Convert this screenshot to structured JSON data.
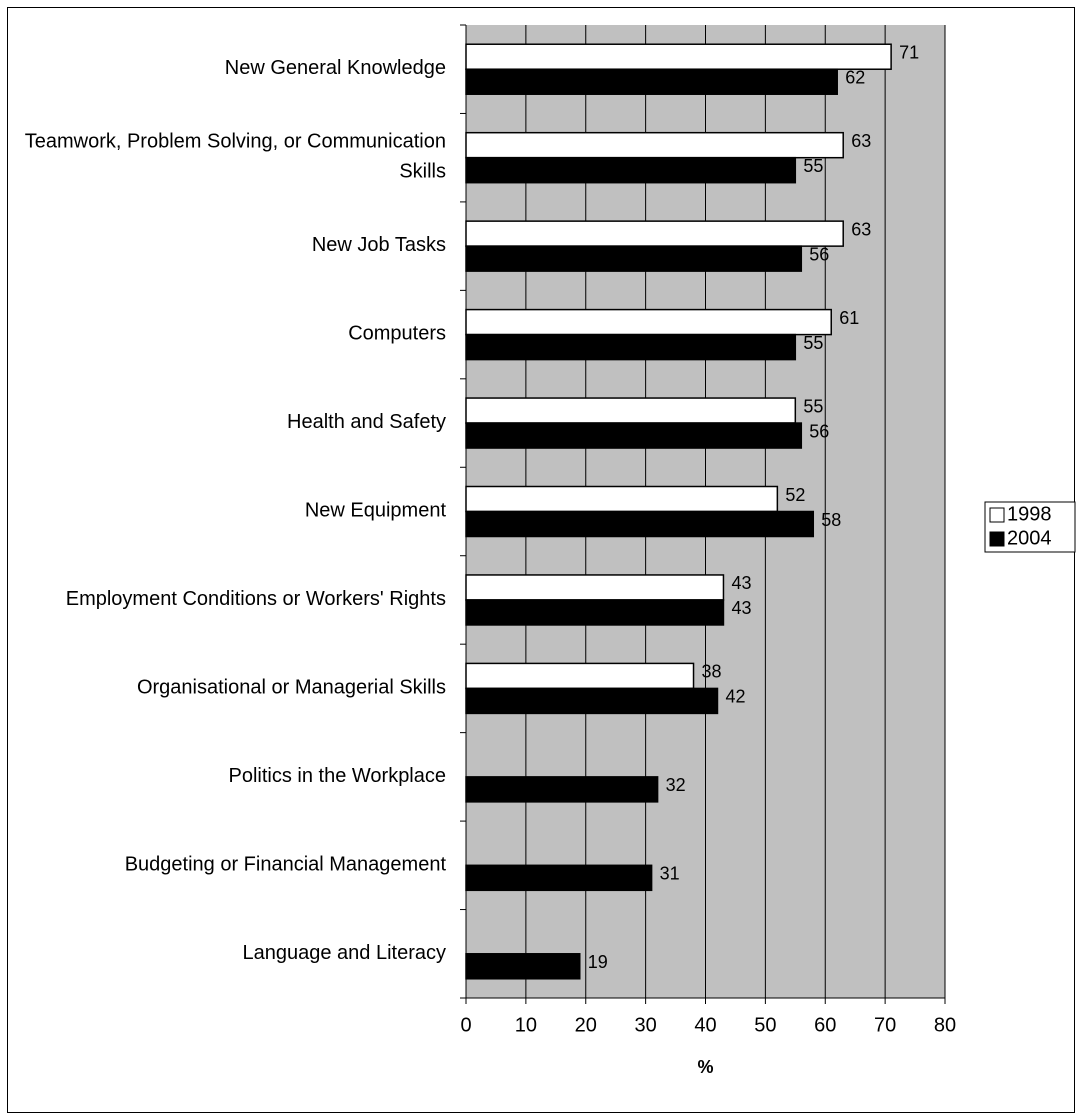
{
  "chart_data": {
    "type": "hbar",
    "categories": [
      "New General Knowledge",
      "Teamwork, Problem Solving, or Communication Skills",
      "New Job Tasks",
      "Computers",
      "Health and Safety",
      "New Equipment",
      "Employment Conditions or Workers' Rights",
      "Organisational or Managerial Skills",
      "Politics in the Workplace",
      "Budgeting or Financial Management",
      "Language and Literacy"
    ],
    "series": [
      {
        "name": "1998",
        "color": "#ffffff",
        "values": [
          71,
          63,
          63,
          61,
          55,
          52,
          43,
          38,
          null,
          null,
          null
        ]
      },
      {
        "name": "2004",
        "color": "#000000",
        "values": [
          62,
          55,
          56,
          55,
          56,
          58,
          43,
          42,
          32,
          31,
          19
        ]
      }
    ],
    "xlabel": "%",
    "xlim": [
      0,
      80
    ],
    "xticks": [
      0,
      10,
      20,
      30,
      40,
      50,
      60,
      70,
      80
    ],
    "grid": true,
    "legend": "right",
    "plot_background": "#c0c0c0"
  }
}
